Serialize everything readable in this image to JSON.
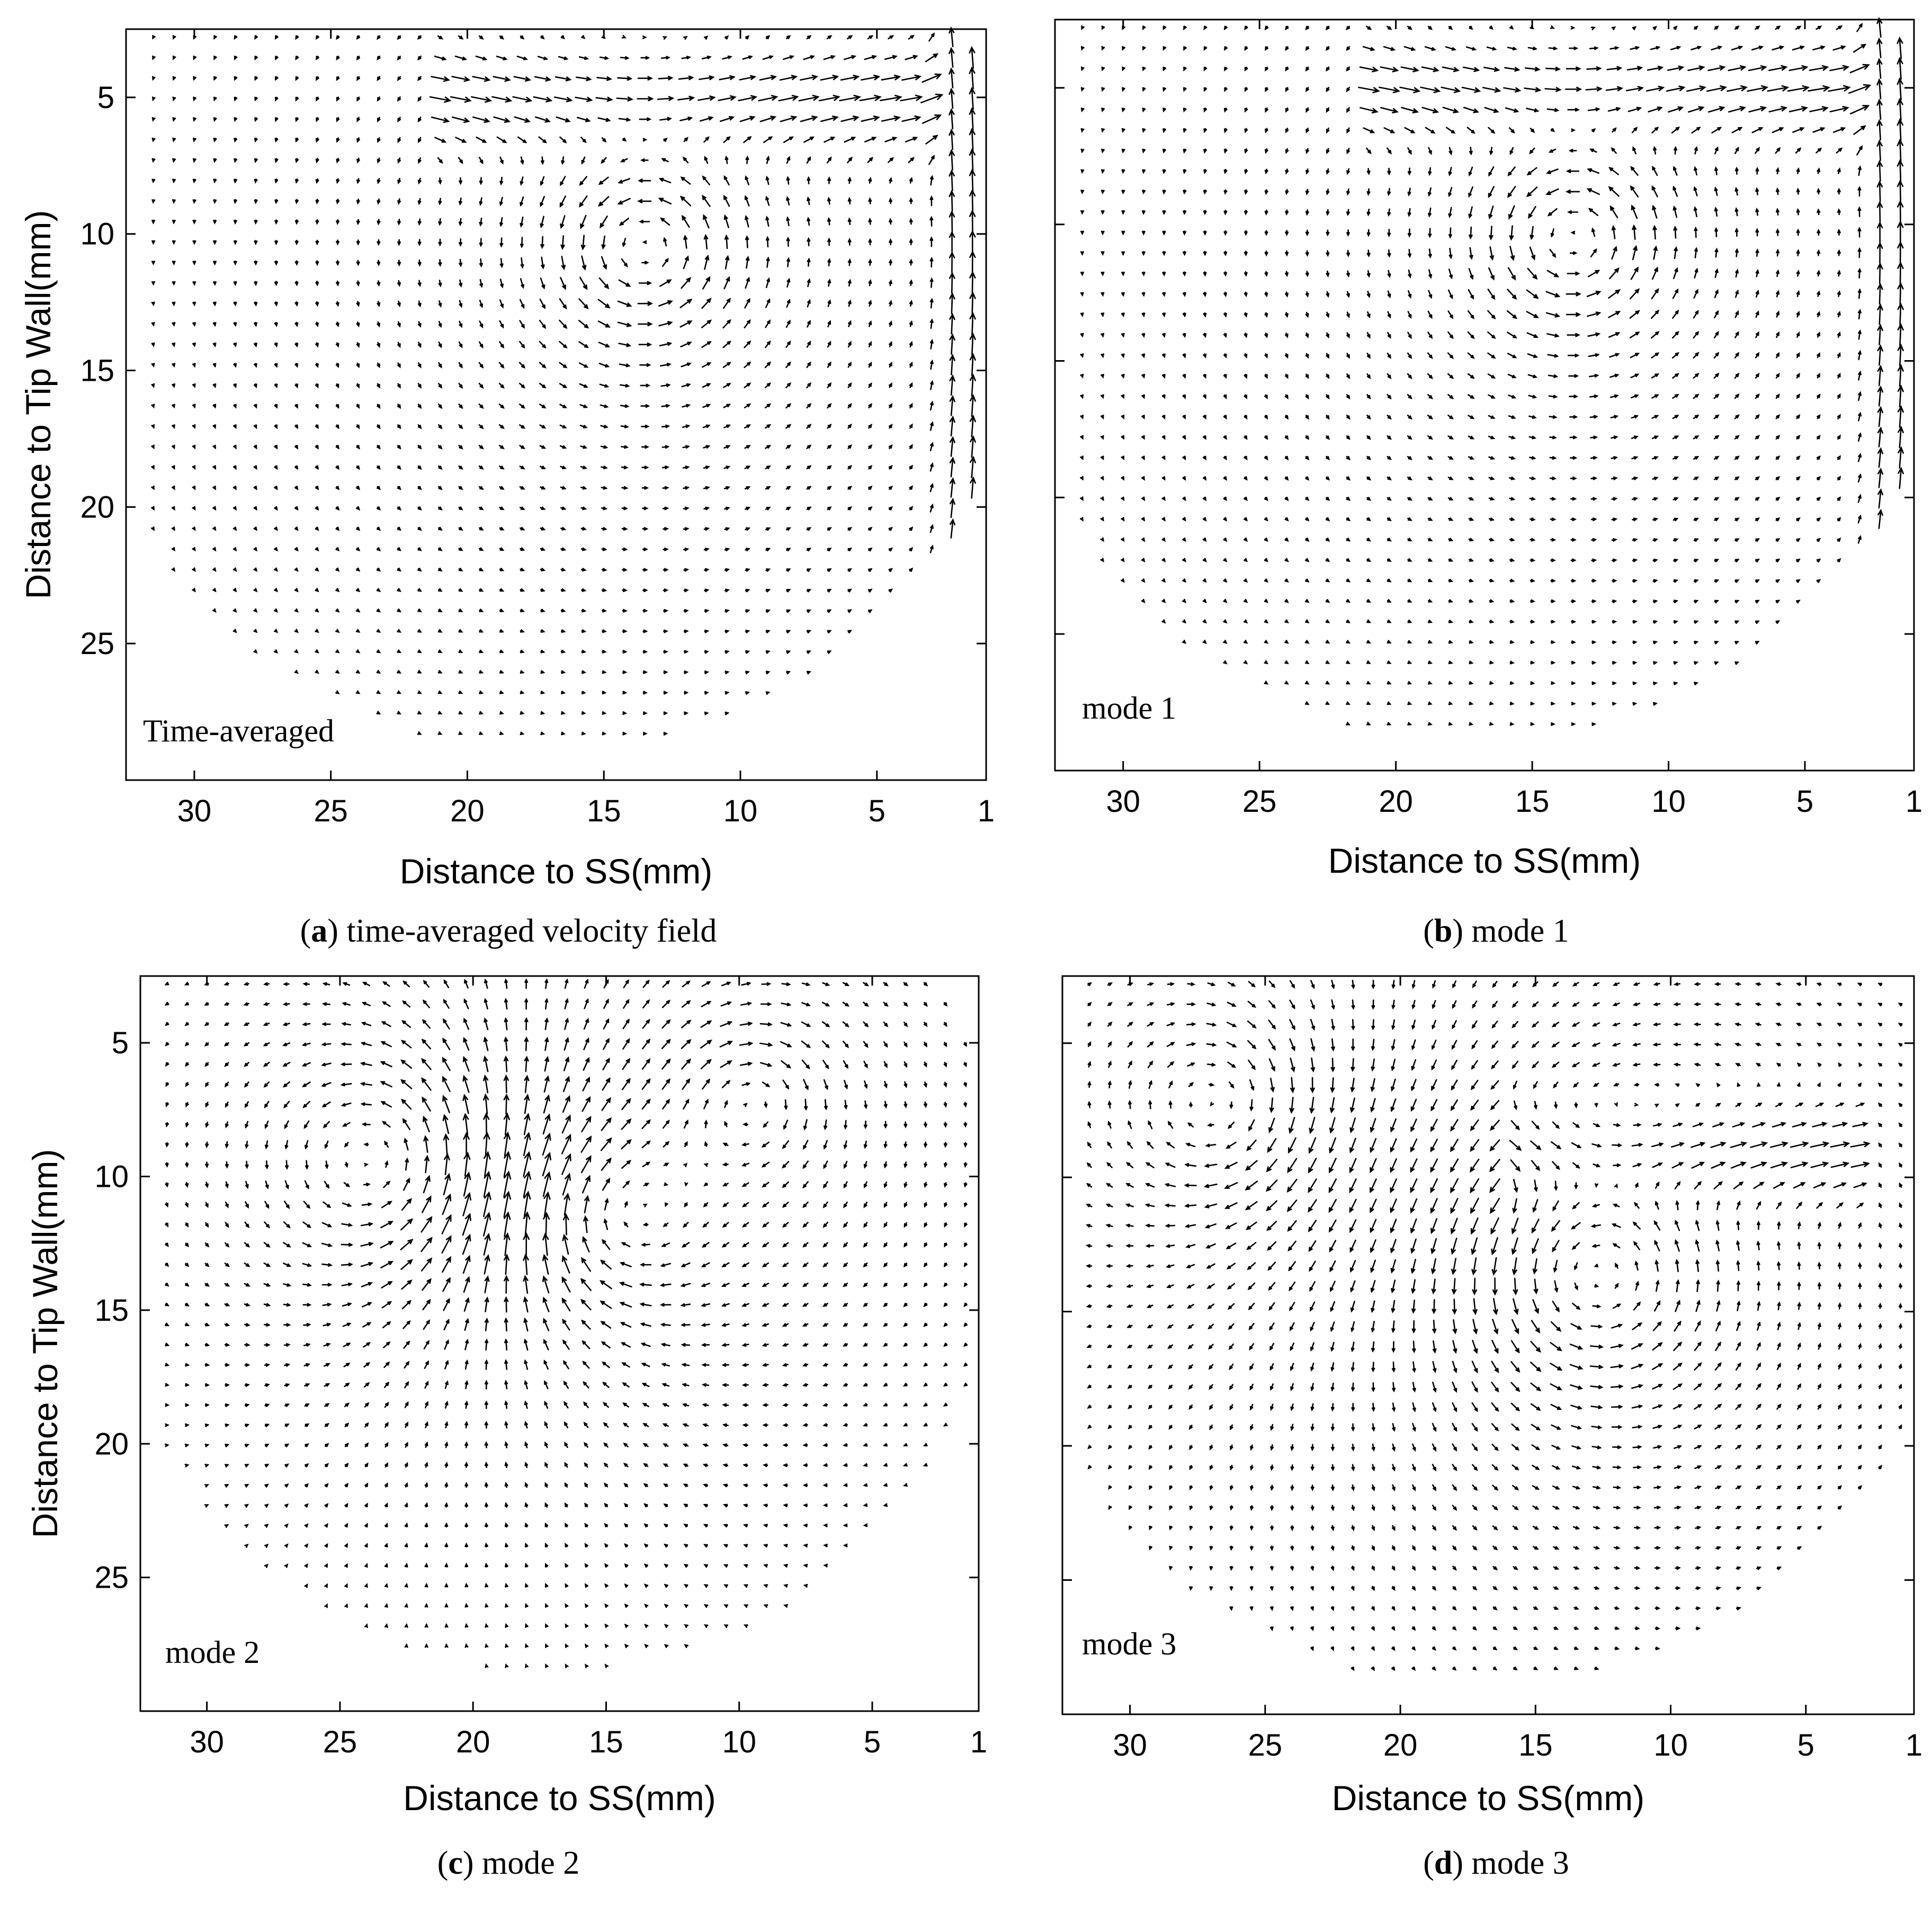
{
  "chart_data": [
    {
      "type": "quiver",
      "panel_label": "Time-averaged",
      "caption": {
        "letter": "a",
        "text": ") time-averaged velocity field",
        "open": "("
      },
      "xlabel": "Distance to SS(mm)",
      "ylabel": "Distance to Tip Wall(mm)",
      "x_ticks": [
        30,
        25,
        20,
        15,
        10,
        5,
        1
      ],
      "y_ticks": [
        5,
        10,
        15,
        20,
        25
      ],
      "show_y_tick_labels": true,
      "xlim": [
        32.5,
        1
      ],
      "ylim": [
        2.5,
        30
      ],
      "x_reversed": true,
      "y_reversed": true,
      "domain": {
        "center_x": 17.0,
        "center_y": 11.5,
        "radius": 17.5,
        "top_y": 2.8
      },
      "vortices": [
        {
          "x": 13.5,
          "y": 10.5,
          "strength": 1.0,
          "core": 2.0,
          "sign": 1
        }
      ],
      "uniform_flow": {
        "u": 0.0,
        "v": 0.0
      },
      "shear_jets": [
        {
          "y": 5.0,
          "x_min": 3,
          "x_max": 21,
          "u": -1.5,
          "width": 2.0
        }
      ],
      "wall_jet": {
        "x": 1.8,
        "v": -1.3,
        "width": 1.0
      }
    },
    {
      "type": "quiver",
      "panel_label": "mode 1",
      "caption": {
        "letter": "b",
        "text": ") mode 1",
        "open": "("
      },
      "xlabel": "Distance to SS(mm)",
      "ylabel": "",
      "x_ticks": [
        30,
        25,
        20,
        15,
        10,
        5,
        1
      ],
      "y_ticks": [
        5,
        10,
        15,
        20,
        25
      ],
      "show_y_tick_labels": false,
      "xlim": [
        32.5,
        1
      ],
      "ylim": [
        2.5,
        30
      ],
      "x_reversed": true,
      "y_reversed": true,
      "domain": {
        "center_x": 17.0,
        "center_y": 11.5,
        "radius": 17.5,
        "top_y": 2.8
      },
      "vortices": [
        {
          "x": 13.5,
          "y": 10.5,
          "strength": 1.0,
          "core": 2.0,
          "sign": 1
        }
      ],
      "uniform_flow": {
        "u": 0.0,
        "v": 0.0
      },
      "shear_jets": [
        {
          "y": 5.0,
          "x_min": 3,
          "x_max": 21,
          "u": -1.5,
          "width": 2.0
        }
      ],
      "wall_jet": {
        "x": 1.8,
        "v": -1.3,
        "width": 1.0
      }
    },
    {
      "type": "quiver",
      "panel_label": "mode 2",
      "caption": {
        "letter": "c",
        "text": ") mode 2",
        "open": "("
      },
      "xlabel": "Distance to SS(mm)",
      "ylabel": "Distance to Tip Wall(mm)",
      "x_ticks": [
        30,
        25,
        20,
        15,
        10,
        5,
        1
      ],
      "y_ticks": [
        5,
        10,
        15,
        20,
        25
      ],
      "show_y_tick_labels": true,
      "xlim": [
        32.5,
        1
      ],
      "ylim": [
        2.5,
        30
      ],
      "x_reversed": true,
      "y_reversed": true,
      "domain": {
        "center_x": 17.0,
        "center_y": 11.5,
        "radius": 17.0,
        "top_y": 2.8
      },
      "vortices": [
        {
          "x": 23.0,
          "y": 9.5,
          "strength": 1.0,
          "core": 3.0,
          "sign": 1
        },
        {
          "x": 9.5,
          "y": 7.0,
          "strength": 0.7,
          "core": 1.8,
          "sign": -1
        },
        {
          "x": 15.0,
          "y": 11.5,
          "strength": 0.9,
          "core": 2.5,
          "sign": -1
        }
      ],
      "uniform_flow": {
        "u": 0.0,
        "v": 0.0
      },
      "shear_jets": [],
      "wall_jet": null
    },
    {
      "type": "quiver",
      "panel_label": "mode 3",
      "caption": {
        "letter": "d",
        "text": ") mode 3",
        "open": "("
      },
      "xlabel": "Distance to SS(mm)",
      "ylabel": "",
      "x_ticks": [
        30,
        25,
        20,
        15,
        10,
        5,
        1
      ],
      "y_ticks": [
        5,
        10,
        15,
        20,
        25
      ],
      "show_y_tick_labels": false,
      "xlim": [
        32.5,
        1
      ],
      "ylim": [
        2.5,
        30
      ],
      "x_reversed": true,
      "y_reversed": true,
      "domain": {
        "center_x": 17.0,
        "center_y": 11.5,
        "radius": 17.5,
        "top_y": 2.8
      },
      "vortices": [
        {
          "x": 26.5,
          "y": 7.5,
          "strength": 0.8,
          "core": 2.5,
          "sign": -1
        },
        {
          "x": 13.0,
          "y": 13.5,
          "strength": 1.0,
          "core": 3.0,
          "sign": 1
        }
      ],
      "uniform_flow": {
        "u": 0.0,
        "v": 0.0
      },
      "shear_jets": [
        {
          "y": 9.0,
          "x_min": 3,
          "x_max": 16,
          "u": -1.4,
          "width": 2.0
        }
      ],
      "wall_jet": null
    }
  ]
}
